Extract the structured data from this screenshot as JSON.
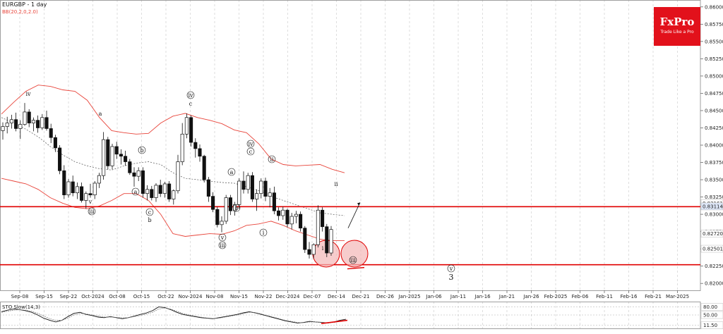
{
  "header": {
    "symbol_title": "EURGBP - 1 day",
    "indicator_label": "BB(20,2,0,2.0)"
  },
  "logo": {
    "brand": "FxPro",
    "tagline": "Trade Like a Pro",
    "color": "#e2111b"
  },
  "colors": {
    "bollinger": "#e8443a",
    "middle_band": "#555555",
    "support_resistance": "#e00000",
    "candle_up": "#ffffff",
    "candle_down": "#111111",
    "circle_fill": "#f4b6b6",
    "stoch": "#111111",
    "stoch_signal": "#e00000"
  },
  "oscillator": {
    "label": "STO Slow(14,3)",
    "levels": [
      "80.00",
      "50.00",
      "11.50"
    ]
  },
  "chart_data": {
    "type": "candlestick",
    "title": "EURGBP - 1 day",
    "ylim": [
      0.819,
      0.861
    ],
    "y_ticks": [
      "0.86000",
      "0.85750",
      "0.85500",
      "0.85250",
      "0.85000",
      "0.84750",
      "0.84500",
      "0.84250",
      "0.84000",
      "0.83750",
      "0.83500",
      "0.83250",
      "0.83000",
      "0.82750",
      "0.82500",
      "0.82250",
      "0.82000"
    ],
    "price_tags": [
      {
        "value": 0.83161,
        "label": "0.83161"
      },
      {
        "value": 0.83114,
        "label": "0.83114"
      },
      {
        "value": 0.8272,
        "label": "0.82720"
      },
      {
        "value": 0.82501,
        "label": "0.82501"
      }
    ],
    "x_labels": [
      "Sep-08",
      "Sep-15",
      "Sep-22",
      "Oct-2024",
      "Oct-08",
      "Oct-15",
      "Oct-22",
      "Nov-2024",
      "Nov-08",
      "Nov-15",
      "Nov-22",
      "Dec-2024",
      "Dec-07",
      "Dec-14",
      "Dec-21",
      "Dec-26",
      "Jan-2025",
      "Jan-06",
      "Jan-11",
      "Jan-16",
      "Jan-21",
      "Jan-26",
      "Feb-2025",
      "Feb-06",
      "Feb-11",
      "Feb-16",
      "Feb-21",
      "Mar-2025"
    ],
    "horizontal_lines": [
      0.8311,
      0.8227
    ],
    "candles": [
      [
        0.8421,
        0.8433,
        0.8408,
        0.8427
      ],
      [
        0.8427,
        0.8441,
        0.8417,
        0.8432
      ],
      [
        0.8432,
        0.8444,
        0.8424,
        0.8437
      ],
      [
        0.8437,
        0.8447,
        0.842,
        0.8424
      ],
      [
        0.8424,
        0.8436,
        0.8409,
        0.843
      ],
      [
        0.843,
        0.8461,
        0.8428,
        0.8448
      ],
      [
        0.8448,
        0.8452,
        0.8426,
        0.8432
      ],
      [
        0.8432,
        0.844,
        0.842,
        0.8436
      ],
      [
        0.8436,
        0.8443,
        0.8418,
        0.8425
      ],
      [
        0.8425,
        0.8445,
        0.8422,
        0.844
      ],
      [
        0.844,
        0.845,
        0.8421,
        0.8424
      ],
      [
        0.8424,
        0.8431,
        0.8403,
        0.8411
      ],
      [
        0.8411,
        0.8415,
        0.839,
        0.8396
      ],
      [
        0.8396,
        0.84,
        0.8358,
        0.8363
      ],
      [
        0.8363,
        0.8371,
        0.8322,
        0.8328
      ],
      [
        0.8328,
        0.8351,
        0.8324,
        0.8347
      ],
      [
        0.8347,
        0.8356,
        0.8326,
        0.8331
      ],
      [
        0.8331,
        0.8346,
        0.8322,
        0.834
      ],
      [
        0.834,
        0.8346,
        0.8317,
        0.832
      ],
      [
        0.832,
        0.8333,
        0.8308,
        0.833
      ],
      [
        0.833,
        0.8344,
        0.8324,
        0.8328
      ],
      [
        0.8328,
        0.8348,
        0.8322,
        0.8345
      ],
      [
        0.8345,
        0.836,
        0.8338,
        0.8356
      ],
      [
        0.8356,
        0.8419,
        0.835,
        0.8408
      ],
      [
        0.8408,
        0.8412,
        0.8365,
        0.837
      ],
      [
        0.837,
        0.8402,
        0.8365,
        0.8398
      ],
      [
        0.8398,
        0.8405,
        0.838,
        0.8387
      ],
      [
        0.8387,
        0.8394,
        0.8372,
        0.8384
      ],
      [
        0.8384,
        0.8392,
        0.837,
        0.8376
      ],
      [
        0.8376,
        0.838,
        0.8357,
        0.836
      ],
      [
        0.836,
        0.8368,
        0.834,
        0.8355
      ],
      [
        0.8355,
        0.8368,
        0.8348,
        0.8363
      ],
      [
        0.8363,
        0.8368,
        0.8324,
        0.833
      ],
      [
        0.833,
        0.8342,
        0.832,
        0.8336
      ],
      [
        0.8336,
        0.8341,
        0.832,
        0.8324
      ],
      [
        0.8324,
        0.8345,
        0.8318,
        0.8342
      ],
      [
        0.8342,
        0.835,
        0.8325,
        0.833
      ],
      [
        0.833,
        0.8347,
        0.8324,
        0.8344
      ],
      [
        0.8344,
        0.8348,
        0.8318,
        0.8322
      ],
      [
        0.8322,
        0.8336,
        0.8314,
        0.8334
      ],
      [
        0.8334,
        0.8386,
        0.833,
        0.8376
      ],
      [
        0.8376,
        0.8432,
        0.8371,
        0.8416
      ],
      [
        0.8416,
        0.8446,
        0.841,
        0.844
      ],
      [
        0.844,
        0.8443,
        0.8398,
        0.8404
      ],
      [
        0.8404,
        0.841,
        0.8382,
        0.8395
      ],
      [
        0.8395,
        0.8401,
        0.8376,
        0.8384
      ],
      [
        0.8384,
        0.8386,
        0.8346,
        0.835
      ],
      [
        0.835,
        0.8354,
        0.8318,
        0.8326
      ],
      [
        0.8326,
        0.8332,
        0.8303,
        0.8307
      ],
      [
        0.8307,
        0.8311,
        0.8281,
        0.8285
      ],
      [
        0.8285,
        0.8297,
        0.8274,
        0.829
      ],
      [
        0.829,
        0.8328,
        0.8286,
        0.8324
      ],
      [
        0.8324,
        0.8328,
        0.8299,
        0.8305
      ],
      [
        0.8305,
        0.8318,
        0.8298,
        0.8314
      ],
      [
        0.8314,
        0.8352,
        0.8308,
        0.8348
      ],
      [
        0.8348,
        0.8362,
        0.833,
        0.8336
      ],
      [
        0.8336,
        0.836,
        0.833,
        0.8356
      ],
      [
        0.8356,
        0.8361,
        0.8318,
        0.8322
      ],
      [
        0.8322,
        0.8336,
        0.8305,
        0.833
      ],
      [
        0.833,
        0.8352,
        0.8323,
        0.8348
      ],
      [
        0.8348,
        0.8353,
        0.8319,
        0.8326
      ],
      [
        0.8326,
        0.8338,
        0.831,
        0.8331
      ],
      [
        0.8331,
        0.834,
        0.83,
        0.8305
      ],
      [
        0.8305,
        0.831,
        0.8291,
        0.8298
      ],
      [
        0.8298,
        0.8311,
        0.8292,
        0.8306
      ],
      [
        0.8306,
        0.8308,
        0.8281,
        0.8286
      ],
      [
        0.8286,
        0.8302,
        0.8278,
        0.8297
      ],
      [
        0.8297,
        0.8305,
        0.8287,
        0.83
      ],
      [
        0.83,
        0.8304,
        0.8275,
        0.828
      ],
      [
        0.828,
        0.8283,
        0.8244,
        0.8249
      ],
      [
        0.8249,
        0.826,
        0.8236,
        0.8242
      ],
      [
        0.8242,
        0.8258,
        0.8236,
        0.8256
      ],
      [
        0.8256,
        0.8313,
        0.8252,
        0.8306
      ],
      [
        0.8306,
        0.831,
        0.8275,
        0.8282
      ],
      [
        0.8282,
        0.8286,
        0.8238,
        0.8244
      ],
      [
        0.8244,
        0.8283,
        0.824,
        0.8278
      ]
    ],
    "upper_band": [
      0.8445,
      0.8462,
      0.8478,
      0.8487,
      0.8485,
      0.848,
      0.8478,
      0.8465,
      0.844,
      0.8421,
      0.8418,
      0.8416,
      0.8417,
      0.8432,
      0.8442,
      0.8446,
      0.844,
      0.8436,
      0.8431,
      0.8422,
      0.8418,
      0.8402,
      0.838,
      0.8372,
      0.837,
      0.8371,
      0.8372,
      0.8365,
      0.836
    ],
    "lower_band": [
      0.8352,
      0.8348,
      0.8344,
      0.8336,
      0.8324,
      0.8316,
      0.831,
      0.8308,
      0.8312,
      0.832,
      0.833,
      0.833,
      0.832,
      0.83,
      0.8272,
      0.8268,
      0.827,
      0.8272,
      0.8271,
      0.8276,
      0.8284,
      0.8286,
      0.829,
      0.8284,
      0.8276,
      0.827,
      0.8264,
      0.8262,
      0.8262
    ],
    "middle_band": [
      0.844,
      0.8432,
      0.8423,
      0.8412,
      0.8398,
      0.8386,
      0.8376,
      0.837,
      0.8366,
      0.8364,
      0.837,
      0.8374,
      0.8376,
      0.8372,
      0.836,
      0.8352,
      0.835,
      0.8348,
      0.8346,
      0.8345,
      0.834,
      0.8334,
      0.8326,
      0.832,
      0.8314,
      0.8308,
      0.8302,
      0.83,
      0.8298
    ],
    "wave_labels": [
      {
        "text": "iv",
        "circled": false
      },
      {
        "text": "v",
        "circled": false
      },
      {
        "text": "iii",
        "circled": true
      },
      {
        "text": "a",
        "circled": false
      },
      {
        "text": "b",
        "circled": true
      },
      {
        "text": "a",
        "circled": true
      },
      {
        "text": "c",
        "circled": true
      },
      {
        "text": "b",
        "circled": false
      },
      {
        "text": "iv",
        "circled": true
      },
      {
        "text": "c",
        "circled": false
      },
      {
        "text": "a",
        "circled": true
      },
      {
        "text": "b",
        "circled": true
      },
      {
        "text": "iv",
        "circled": true
      },
      {
        "text": "c",
        "circled": true
      },
      {
        "text": "v",
        "circled": true
      },
      {
        "text": "iii",
        "circled": true
      },
      {
        "text": "ii",
        "circled": true
      },
      {
        "text": "i",
        "circled": true
      },
      {
        "text": "ii",
        "circled": false
      },
      {
        "text": "i",
        "circled": false
      },
      {
        "text": "iii",
        "circled": true
      },
      {
        "text": "v",
        "circled": true
      },
      {
        "text": "3",
        "circled": false
      }
    ],
    "stoch_k": [
      62,
      68,
      72,
      70,
      66,
      60,
      50,
      38,
      30,
      24,
      30,
      44,
      56,
      60,
      52,
      48,
      42,
      40,
      44,
      40,
      36,
      40,
      46,
      52,
      58,
      66,
      80,
      78,
      70,
      60,
      52,
      48,
      44,
      40,
      38,
      36,
      40,
      44,
      48,
      52,
      58,
      62,
      58,
      52,
      46,
      40,
      34,
      28,
      24,
      20,
      22,
      26,
      24,
      22,
      20,
      24,
      30,
      34
    ],
    "stoch_d": [
      60,
      64,
      68,
      70,
      68,
      64,
      56,
      46,
      36,
      30,
      30,
      38,
      50,
      56,
      54,
      50,
      46,
      42,
      42,
      41,
      39,
      40,
      44,
      48,
      54,
      60,
      72,
      76,
      72,
      64,
      56,
      50,
      46,
      42,
      39,
      37,
      38,
      42,
      46,
      50,
      55,
      60,
      59,
      54,
      48,
      42,
      36,
      30,
      26,
      22,
      21,
      24,
      24,
      23,
      21,
      22,
      26,
      30
    ]
  }
}
